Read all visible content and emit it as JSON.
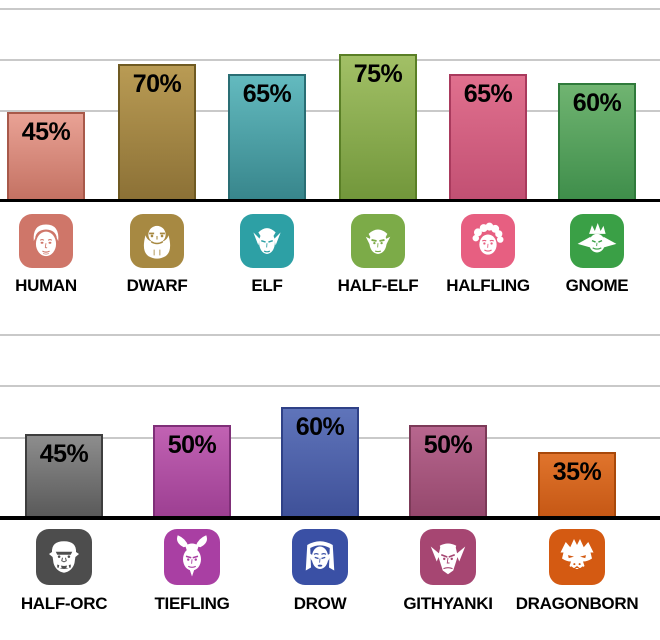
{
  "axis": {
    "gridline_color": "#c9c9c9",
    "baseline_color": "#000000",
    "value_label_color": "#000000"
  },
  "chart_data": [
    {
      "type": "bar",
      "title": "",
      "categories": [
        "HUMAN",
        "DWARF",
        "ELF",
        "HALF-ELF",
        "HALFLING",
        "GNOME"
      ],
      "values": [
        45,
        70,
        65,
        75,
        65,
        60
      ],
      "ylim": [
        0,
        100
      ],
      "grid": true,
      "legend": false,
      "value_labels_shown": true,
      "columns": [
        {
          "label": "HUMAN",
          "value": 45,
          "value_label": "45%",
          "bar_top": "#e9a295",
          "bar_bottom": "#c47263",
          "bar_border": "#a8594a",
          "tile": "#cf7669"
        },
        {
          "label": "DWARF",
          "value": 70,
          "value_label": "70%",
          "bar_top": "#b99b54",
          "bar_bottom": "#8c7136",
          "bar_border": "#6f5a22",
          "tile": "#a78942"
        },
        {
          "label": "ELF",
          "value": 65,
          "value_label": "65%",
          "bar_top": "#63babf",
          "bar_bottom": "#38868c",
          "bar_border": "#2a6e74",
          "tile": "#2da0a5"
        },
        {
          "label": "HALF-ELF",
          "value": 75,
          "value_label": "75%",
          "bar_top": "#a2c066",
          "bar_bottom": "#72973b",
          "bar_border": "#5a7f26",
          "tile": "#7cab48"
        },
        {
          "label": "HALFLING",
          "value": 65,
          "value_label": "65%",
          "bar_top": "#e0708e",
          "bar_bottom": "#c25073",
          "bar_border": "#a93a5d",
          "tile": "#e75f81"
        },
        {
          "label": "GNOME",
          "value": 60,
          "value_label": "60%",
          "bar_top": "#70b471",
          "bar_bottom": "#3f8e4b",
          "bar_border": "#2f7a3b",
          "tile": "#3aa046"
        }
      ]
    },
    {
      "type": "bar",
      "title": "",
      "categories": [
        "HALF-ORC",
        "TIEFLING",
        "DROW",
        "GITHYANKI",
        "DRAGONBORN"
      ],
      "values": [
        45,
        50,
        60,
        50,
        35
      ],
      "ylim": [
        0,
        100
      ],
      "grid": true,
      "legend": false,
      "value_labels_shown": true,
      "columns": [
        {
          "label": "HALF-ORC",
          "value": 45,
          "value_label": "45%",
          "bar_top": "#8d8d8d",
          "bar_bottom": "#5a5a5a",
          "bar_border": "#3e3e3e",
          "tile": "#4d4d4d"
        },
        {
          "label": "TIEFLING",
          "value": 50,
          "value_label": "50%",
          "bar_top": "#c162b3",
          "bar_bottom": "#9d3f92",
          "bar_border": "#7f2f78",
          "tile": "#a93fa3"
        },
        {
          "label": "DROW",
          "value": 60,
          "value_label": "60%",
          "bar_top": "#5f74ba",
          "bar_bottom": "#3f5199",
          "bar_border": "#2f4187",
          "tile": "#3a50a5"
        },
        {
          "label": "GITHYANKI",
          "value": 50,
          "value_label": "50%",
          "bar_top": "#b7668e",
          "bar_bottom": "#95486d",
          "bar_border": "#7c3a58",
          "tile": "#a64672"
        },
        {
          "label": "DRAGONBORN",
          "value": 35,
          "value_label": "35%",
          "bar_top": "#e0742c",
          "bar_bottom": "#c65815",
          "bar_border": "#a8480a",
          "tile": "#d45a12"
        }
      ]
    }
  ]
}
